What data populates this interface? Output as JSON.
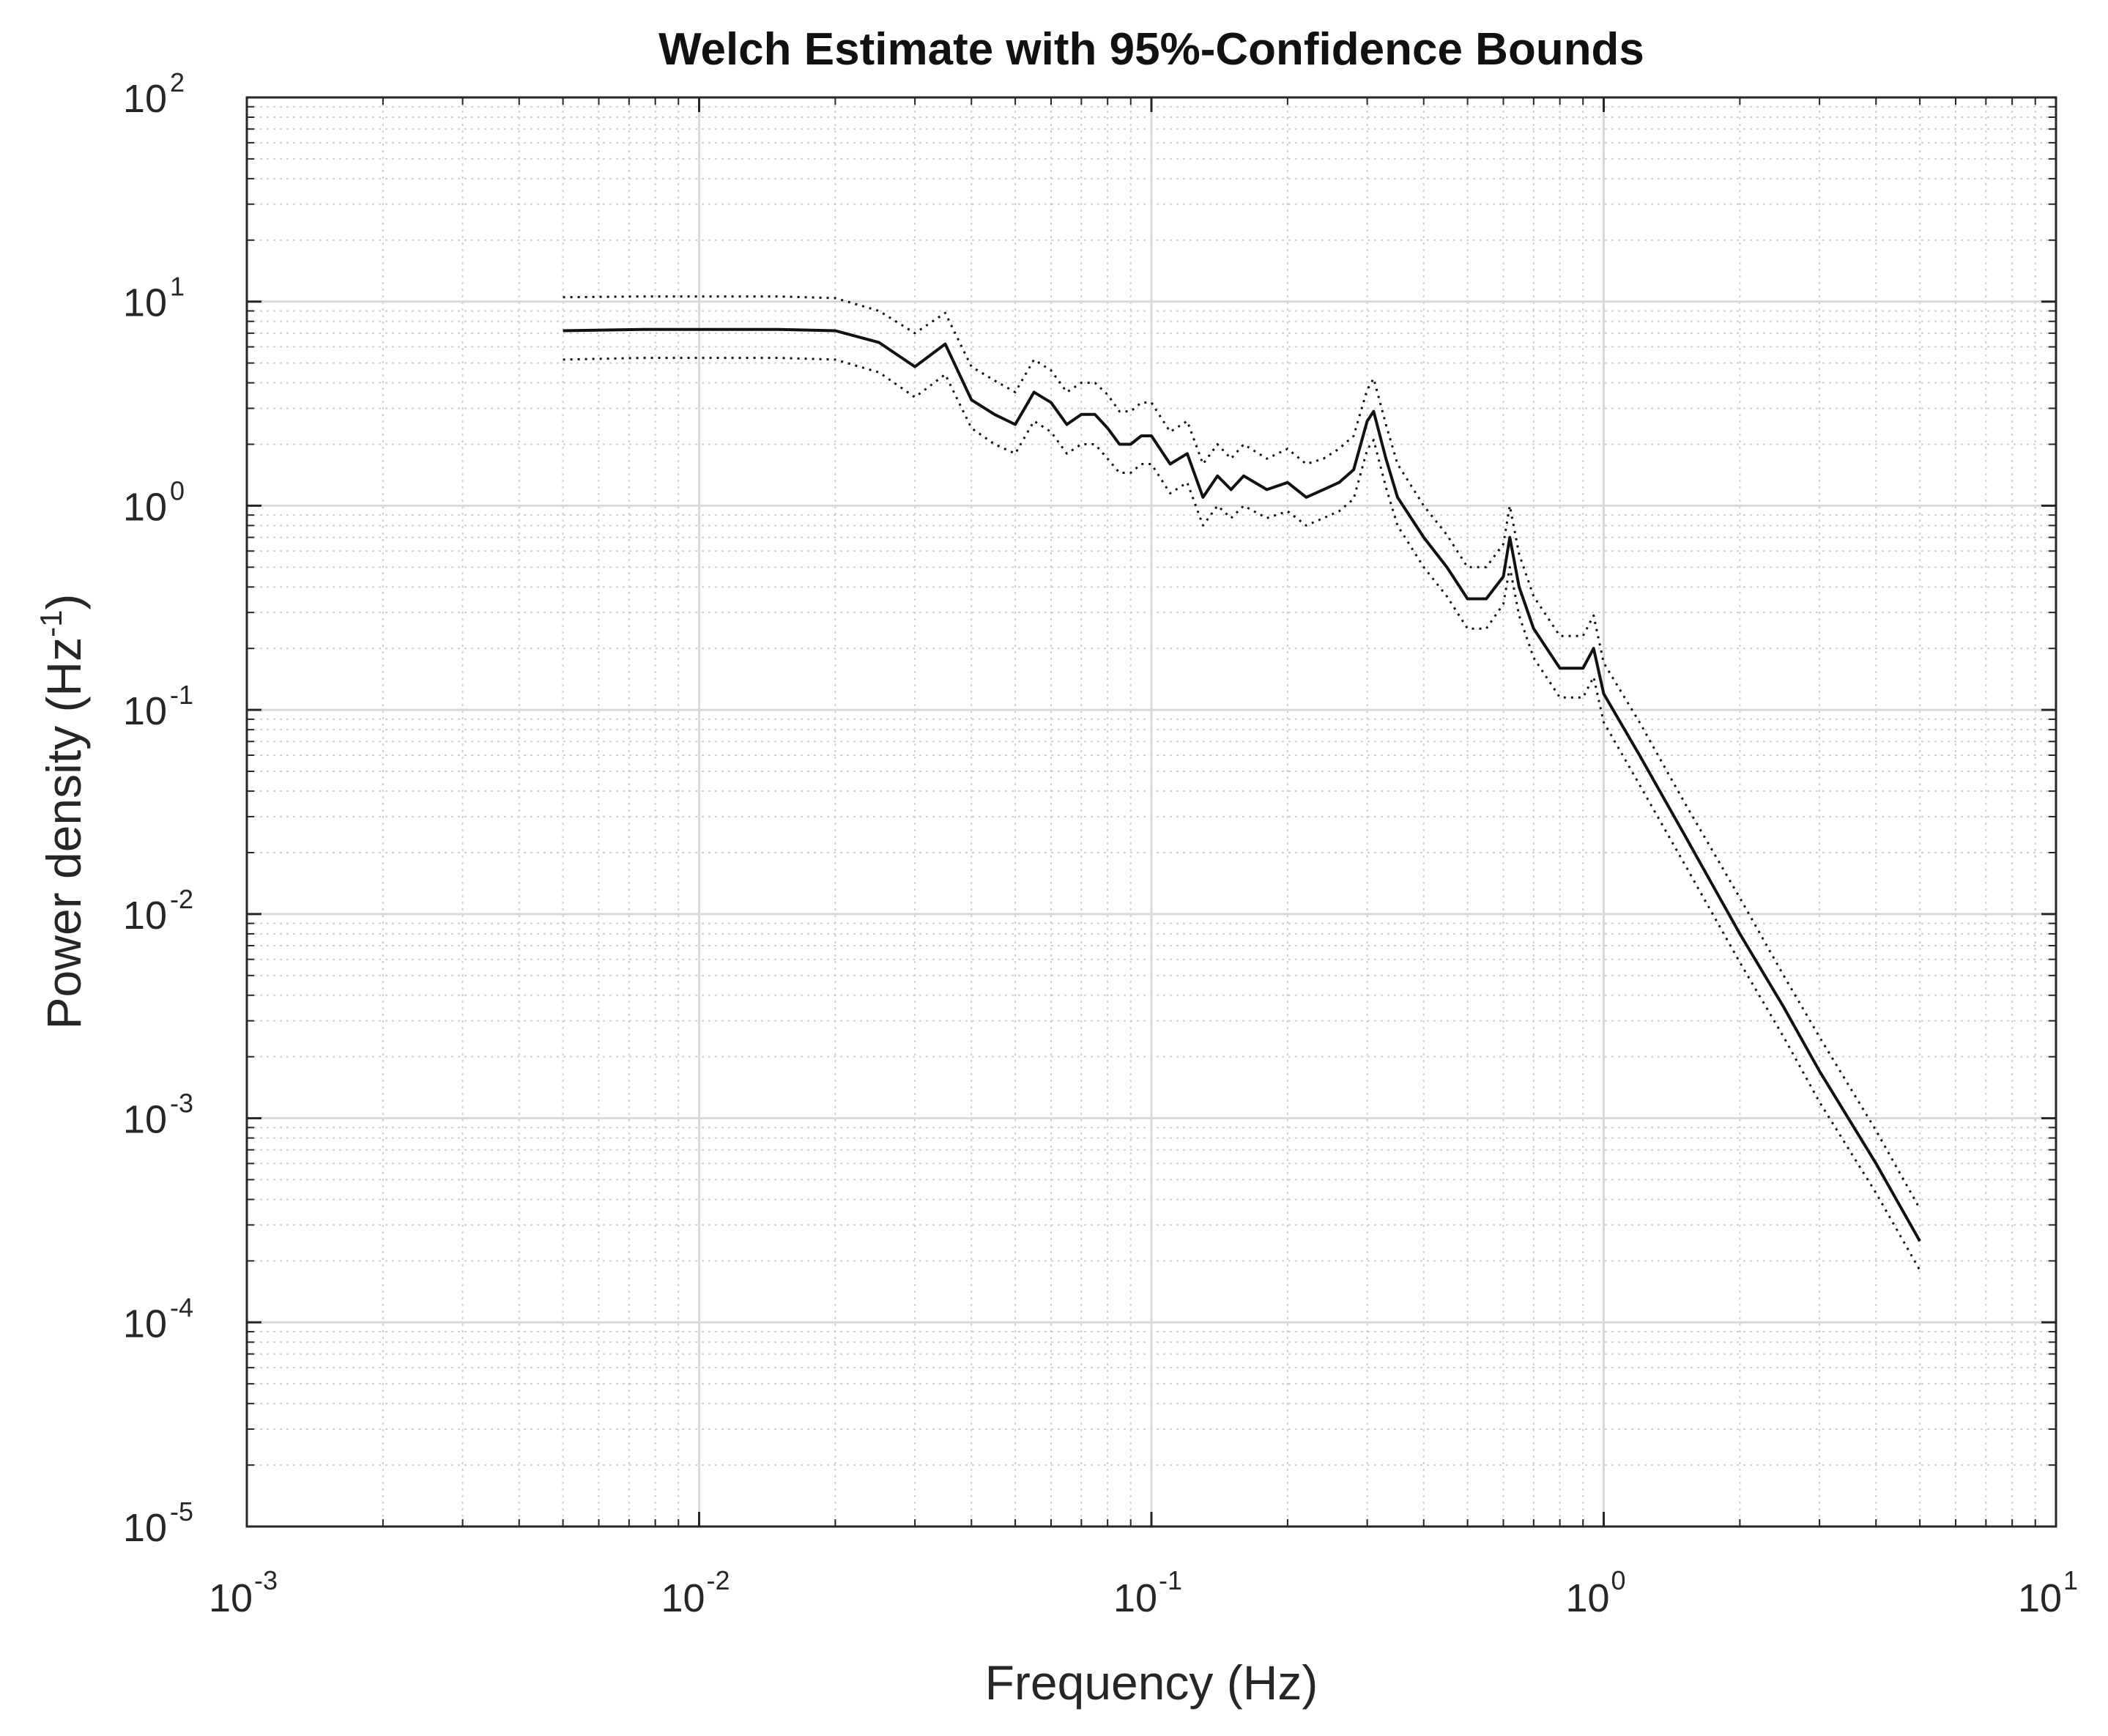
{
  "chart_data": {
    "type": "line",
    "title": "Welch Estimate with 95%-Confidence Bounds",
    "xlabel": "Frequency (Hz)",
    "ylabel": {
      "base": "Power density (Hz",
      "sup": "-1",
      "tail": ")"
    },
    "xscale": "log",
    "yscale": "log",
    "xlim": [
      0.001,
      10
    ],
    "ylim": [
      1e-05,
      100
    ],
    "grid": true,
    "minor_grid": true,
    "x_ticks": [
      {
        "value": 0.001,
        "base": "10",
        "exp": "-3"
      },
      {
        "value": 0.01,
        "base": "10",
        "exp": "-2"
      },
      {
        "value": 0.1,
        "base": "10",
        "exp": "-1"
      },
      {
        "value": 1,
        "base": "10",
        "exp": "0"
      },
      {
        "value": 10,
        "base": "10",
        "exp": "1"
      }
    ],
    "y_ticks": [
      {
        "value": 1e-05,
        "base": "10",
        "exp": "-5"
      },
      {
        "value": 0.0001,
        "base": "10",
        "exp": "-4"
      },
      {
        "value": 0.001,
        "base": "10",
        "exp": "-3"
      },
      {
        "value": 0.01,
        "base": "10",
        "exp": "-2"
      },
      {
        "value": 0.1,
        "base": "10",
        "exp": "-1"
      },
      {
        "value": 1,
        "base": "10",
        "exp": "0"
      },
      {
        "value": 10,
        "base": "10",
        "exp": "1"
      },
      {
        "value": 100,
        "base": "10",
        "exp": "2"
      }
    ],
    "series": [
      {
        "name": "Welch estimate",
        "style": "solid",
        "color": "#111111",
        "x": [
          0.005,
          0.0075,
          0.01,
          0.015,
          0.02,
          0.025,
          0.03,
          0.035,
          0.04,
          0.045,
          0.05,
          0.055,
          0.06,
          0.065,
          0.07,
          0.075,
          0.08,
          0.085,
          0.09,
          0.095,
          0.1,
          0.11,
          0.12,
          0.13,
          0.14,
          0.15,
          0.16,
          0.18,
          0.2,
          0.22,
          0.24,
          0.26,
          0.28,
          0.3,
          0.31,
          0.33,
          0.35,
          0.4,
          0.45,
          0.5,
          0.55,
          0.6,
          0.62,
          0.65,
          0.7,
          0.8,
          0.9,
          0.95,
          1.0,
          1.2,
          1.5,
          2.0,
          2.5,
          3.0,
          4.0,
          5.0
        ],
        "y": [
          7.2,
          7.3,
          7.3,
          7.3,
          7.2,
          6.3,
          4.8,
          6.2,
          3.3,
          2.8,
          2.5,
          3.6,
          3.2,
          2.5,
          2.8,
          2.8,
          2.4,
          2.0,
          2.0,
          2.2,
          2.2,
          1.6,
          1.8,
          1.1,
          1.4,
          1.2,
          1.4,
          1.2,
          1.3,
          1.1,
          1.2,
          1.3,
          1.5,
          2.6,
          2.9,
          1.7,
          1.1,
          0.7,
          0.5,
          0.35,
          0.35,
          0.45,
          0.7,
          0.4,
          0.25,
          0.16,
          0.16,
          0.2,
          0.12,
          0.06,
          0.025,
          0.008,
          0.0035,
          0.0017,
          0.0006,
          0.00025
        ]
      },
      {
        "name": "Upper 95% bound",
        "style": "dotted",
        "color": "#111111",
        "x": [
          0.005,
          0.0075,
          0.01,
          0.015,
          0.02,
          0.025,
          0.03,
          0.035,
          0.04,
          0.045,
          0.05,
          0.055,
          0.06,
          0.065,
          0.07,
          0.075,
          0.08,
          0.085,
          0.09,
          0.095,
          0.1,
          0.11,
          0.12,
          0.13,
          0.14,
          0.15,
          0.16,
          0.18,
          0.2,
          0.22,
          0.24,
          0.26,
          0.28,
          0.3,
          0.31,
          0.33,
          0.35,
          0.4,
          0.45,
          0.5,
          0.55,
          0.6,
          0.62,
          0.65,
          0.7,
          0.8,
          0.9,
          0.95,
          1.0,
          1.2,
          1.5,
          2.0,
          2.5,
          3.0,
          4.0,
          5.0
        ],
        "y": [
          10.5,
          10.6,
          10.6,
          10.6,
          10.4,
          9.0,
          7.0,
          8.8,
          4.8,
          4.1,
          3.6,
          5.2,
          4.6,
          3.6,
          4.0,
          4.0,
          3.5,
          2.9,
          2.9,
          3.2,
          3.2,
          2.3,
          2.6,
          1.6,
          2.0,
          1.7,
          2.0,
          1.7,
          1.9,
          1.6,
          1.7,
          1.9,
          2.2,
          3.7,
          4.2,
          2.5,
          1.6,
          1.0,
          0.72,
          0.5,
          0.5,
          0.65,
          1.0,
          0.58,
          0.36,
          0.23,
          0.23,
          0.29,
          0.17,
          0.087,
          0.036,
          0.012,
          0.005,
          0.0025,
          0.00087,
          0.00036
        ]
      },
      {
        "name": "Lower 95% bound",
        "style": "dotted",
        "color": "#111111",
        "x": [
          0.005,
          0.0075,
          0.01,
          0.015,
          0.02,
          0.025,
          0.03,
          0.035,
          0.04,
          0.045,
          0.05,
          0.055,
          0.06,
          0.065,
          0.07,
          0.075,
          0.08,
          0.085,
          0.09,
          0.095,
          0.1,
          0.11,
          0.12,
          0.13,
          0.14,
          0.15,
          0.16,
          0.18,
          0.2,
          0.22,
          0.24,
          0.26,
          0.28,
          0.3,
          0.31,
          0.33,
          0.35,
          0.4,
          0.45,
          0.5,
          0.55,
          0.6,
          0.62,
          0.65,
          0.7,
          0.8,
          0.9,
          0.95,
          1.0,
          1.2,
          1.5,
          2.0,
          2.5,
          3.0,
          4.0,
          5.0
        ],
        "y": [
          5.2,
          5.3,
          5.3,
          5.3,
          5.2,
          4.5,
          3.4,
          4.4,
          2.4,
          2.0,
          1.8,
          2.6,
          2.3,
          1.8,
          2.0,
          2.0,
          1.7,
          1.45,
          1.45,
          1.6,
          1.6,
          1.15,
          1.3,
          0.8,
          1.0,
          0.87,
          1.0,
          0.87,
          0.94,
          0.8,
          0.87,
          0.94,
          1.08,
          1.88,
          2.1,
          1.23,
          0.8,
          0.5,
          0.36,
          0.25,
          0.25,
          0.33,
          0.5,
          0.29,
          0.18,
          0.115,
          0.115,
          0.145,
          0.087,
          0.043,
          0.018,
          0.0058,
          0.0025,
          0.0012,
          0.00043,
          0.00018
        ]
      }
    ]
  }
}
